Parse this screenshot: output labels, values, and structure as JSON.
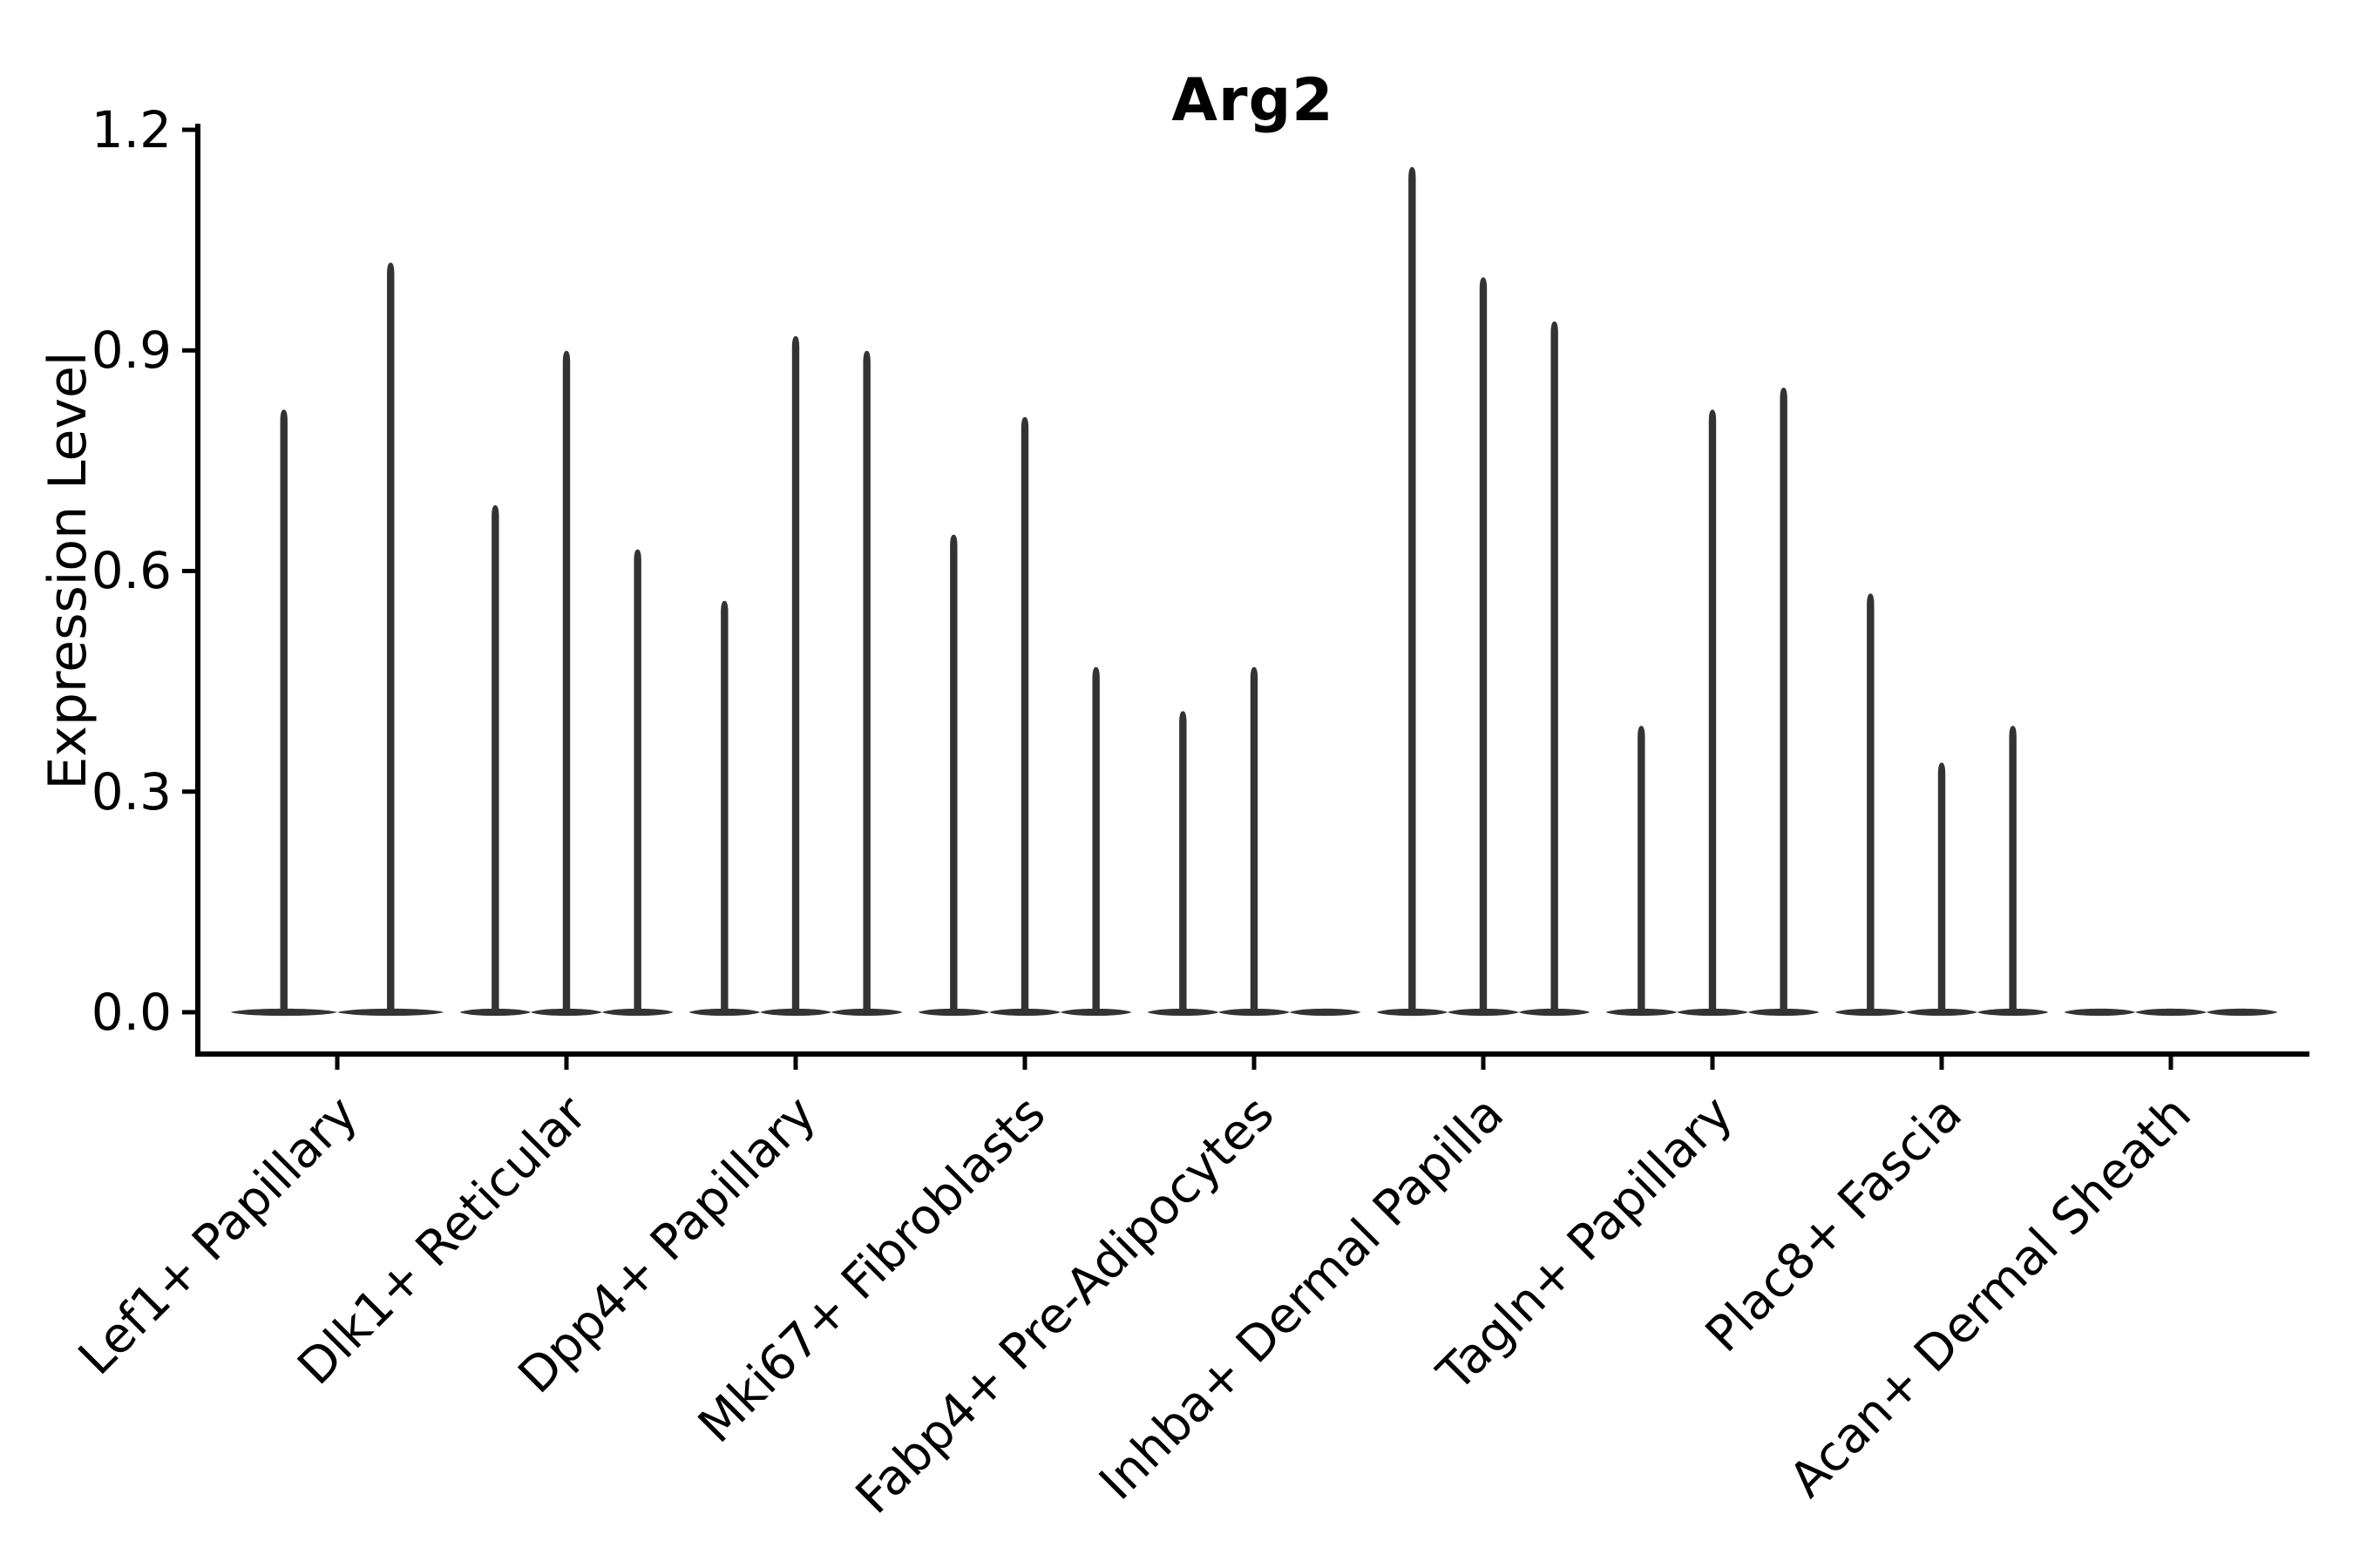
{
  "chart_data": {
    "type": "violin",
    "title": "Arg2",
    "xlabel": "",
    "ylabel": "Expression Level",
    "ylim": [
      0.0,
      1.2
    ],
    "yticks": [
      0.0,
      0.3,
      0.6,
      0.9,
      1.2
    ],
    "ytick_labels": [
      "0.0",
      "0.3",
      "0.6",
      "0.9",
      "1.2"
    ],
    "grid": false,
    "legend": "none",
    "categories": [
      "Lef1+ Papillary",
      "Dlk1+ Reticular",
      "Dpp4+ Papillary",
      "Mki67+ Fibroblasts",
      "Fabp4+ Pre-Adipocytes",
      "Inhba+ Dermal Papilla",
      "Tagln+ Papillary",
      "Plac8+ Fascia",
      "Acan+ Dermal Sheath"
    ],
    "groups": [
      {
        "category": "Lef1+ Papillary",
        "violin_maxima": [
          0.82,
          1.02
        ]
      },
      {
        "category": "Dlk1+ Reticular",
        "violin_maxima": [
          0.69,
          0.9,
          0.63
        ]
      },
      {
        "category": "Dpp4+ Papillary",
        "violin_maxima": [
          0.56,
          0.92,
          0.9
        ]
      },
      {
        "category": "Mki67+ Fibroblasts",
        "violin_maxima": [
          0.65,
          0.81,
          0.47
        ]
      },
      {
        "category": "Fabp4+ Pre-Adipocytes",
        "violin_maxima": [
          0.41,
          0.47,
          0.0
        ]
      },
      {
        "category": "Inhba+ Dermal Papilla",
        "violin_maxima": [
          1.15,
          1.0,
          0.94
        ]
      },
      {
        "category": "Tagln+ Papillary",
        "violin_maxima": [
          0.39,
          0.82,
          0.85
        ]
      },
      {
        "category": "Plac8+ Fascia",
        "violin_maxima": [
          0.57,
          0.34,
          0.39
        ]
      },
      {
        "category": "Acan+ Dermal Sheath",
        "violin_maxima": [
          0.0,
          0.0,
          0.0
        ]
      }
    ],
    "baseline_value": 0.0,
    "colors": {
      "violin": "#333333",
      "axis": "#000000",
      "background": "#ffffff",
      "text": "#000000"
    }
  }
}
